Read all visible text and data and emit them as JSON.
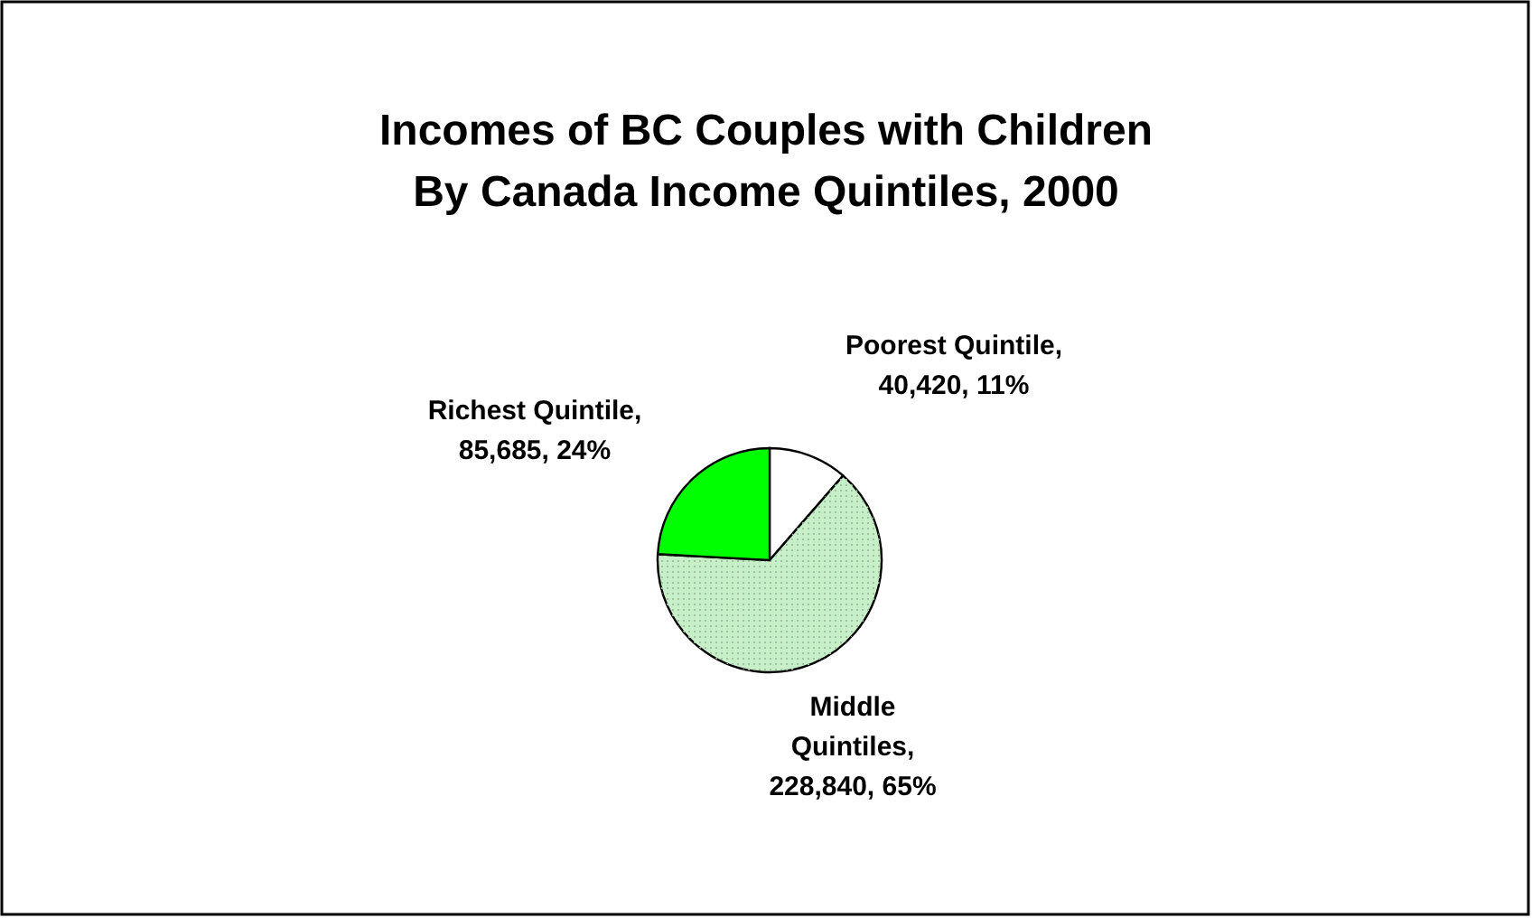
{
  "chart_data": {
    "type": "pie",
    "title": "Incomes of BC Couples with Children",
    "subtitle": "By Canada Income Quintiles, 2000",
    "categories": [
      "Poorest Quintile, 40,420, 11%",
      "Middle Quintiles, 228,840, 65%",
      "Richest Quintile, 85,685, 24%"
    ],
    "values": [
      40420,
      228840,
      85685
    ],
    "colors": [
      "#ffffff",
      "#c8f0c8",
      "#00ff00"
    ]
  }
}
